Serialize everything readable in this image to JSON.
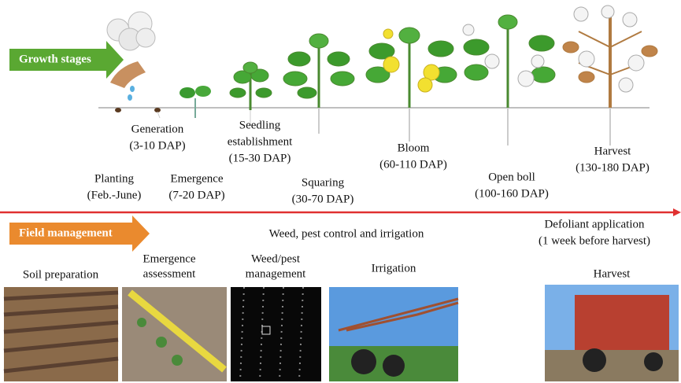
{
  "growth": {
    "title": "Growth stages",
    "stages": [
      {
        "lines": [
          "Planting",
          "(Feb.-June)"
        ]
      },
      {
        "lines": [
          "Generation",
          "(3-10 DAP)"
        ]
      },
      {
        "lines": [
          "Emergence",
          "(7-20 DAP)"
        ]
      },
      {
        "lines": [
          "Seedling",
          "establishment",
          "(15-30 DAP)"
        ]
      },
      {
        "lines": [
          "Squaring",
          "(30-70 DAP)"
        ]
      },
      {
        "lines": [
          "Bloom",
          "(60-110 DAP)"
        ]
      },
      {
        "lines": [
          "Open boll",
          "(100-160 DAP)"
        ]
      },
      {
        "lines": [
          "Harvest",
          "(130-180 DAP)"
        ]
      }
    ]
  },
  "field": {
    "title": "Field management",
    "notes": [
      {
        "lines": [
          "Weed, pest control and irrigation"
        ]
      },
      {
        "lines": [
          "Defoliant application",
          "(1 week before harvest)"
        ]
      }
    ],
    "photos": [
      {
        "lines": [
          "Soil preparation"
        ]
      },
      {
        "lines": [
          "Emergence",
          "assessment"
        ]
      },
      {
        "lines": [
          "Weed/pest",
          "management"
        ]
      },
      {
        "lines": [
          "Irrigation"
        ]
      },
      {
        "lines": [
          "Harvest"
        ]
      }
    ]
  }
}
